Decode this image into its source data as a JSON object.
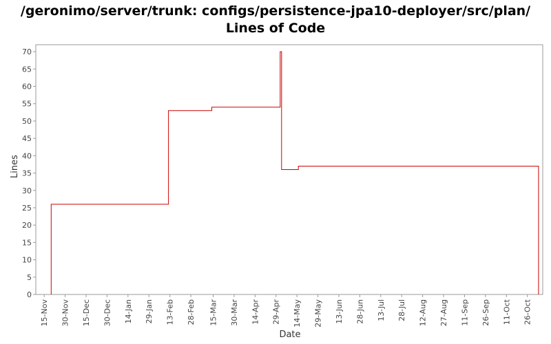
{
  "chart_data": {
    "type": "line",
    "style": "step",
    "title_line1": "/geronimo/server/trunk: configs/persistence-jpa10-deployer/src/plan/",
    "title_line2": "Lines of Code",
    "xlabel": "Date",
    "ylabel": "Lines",
    "ylim": [
      0,
      72
    ],
    "yticks": [
      0,
      5,
      10,
      15,
      20,
      25,
      30,
      35,
      40,
      45,
      50,
      55,
      60,
      65,
      70
    ],
    "xrange": [
      "2007-11-09",
      "2008-11-06"
    ],
    "xticks": [
      {
        "date": "2007-11-15",
        "label": "15-Nov"
      },
      {
        "date": "2007-11-30",
        "label": "30-Nov"
      },
      {
        "date": "2007-12-15",
        "label": "15-Dec"
      },
      {
        "date": "2007-12-30",
        "label": "30-Dec"
      },
      {
        "date": "2008-01-14",
        "label": "14-Jan"
      },
      {
        "date": "2008-01-29",
        "label": "29-Jan"
      },
      {
        "date": "2008-02-13",
        "label": "13-Feb"
      },
      {
        "date": "2008-02-28",
        "label": "28-Feb"
      },
      {
        "date": "2008-03-15",
        "label": "15-Mar"
      },
      {
        "date": "2008-03-30",
        "label": "30-Mar"
      },
      {
        "date": "2008-04-14",
        "label": "14-Apr"
      },
      {
        "date": "2008-04-29",
        "label": "29-Apr"
      },
      {
        "date": "2008-05-14",
        "label": "14-May"
      },
      {
        "date": "2008-05-29",
        "label": "29-May"
      },
      {
        "date": "2008-06-13",
        "label": "13-Jun"
      },
      {
        "date": "2008-06-28",
        "label": "28-Jun"
      },
      {
        "date": "2008-07-13",
        "label": "13-Jul"
      },
      {
        "date": "2008-07-28",
        "label": "28-Jul"
      },
      {
        "date": "2008-08-12",
        "label": "12-Aug"
      },
      {
        "date": "2008-08-27",
        "label": "27-Aug"
      },
      {
        "date": "2008-09-11",
        "label": "11-Sep"
      },
      {
        "date": "2008-09-26",
        "label": "26-Sep"
      },
      {
        "date": "2008-10-11",
        "label": "11-Oct"
      },
      {
        "date": "2008-10-26",
        "label": "26-Oct"
      }
    ],
    "series": [
      {
        "color": "#cc0000",
        "points": [
          {
            "x": "2007-11-20",
            "y": 0
          },
          {
            "x": "2007-11-20",
            "y": 26
          },
          {
            "x": "2008-02-12",
            "y": 26
          },
          {
            "x": "2008-02-12",
            "y": 53
          },
          {
            "x": "2008-03-14",
            "y": 53
          },
          {
            "x": "2008-03-14",
            "y": 54
          },
          {
            "x": "2008-05-02",
            "y": 54
          },
          {
            "x": "2008-05-02",
            "y": 70
          },
          {
            "x": "2008-05-03",
            "y": 70
          },
          {
            "x": "2008-05-03",
            "y": 36
          },
          {
            "x": "2008-05-15",
            "y": 36
          },
          {
            "x": "2008-05-15",
            "y": 37
          },
          {
            "x": "2008-11-03",
            "y": 37
          },
          {
            "x": "2008-11-03",
            "y": 0
          }
        ]
      }
    ]
  }
}
